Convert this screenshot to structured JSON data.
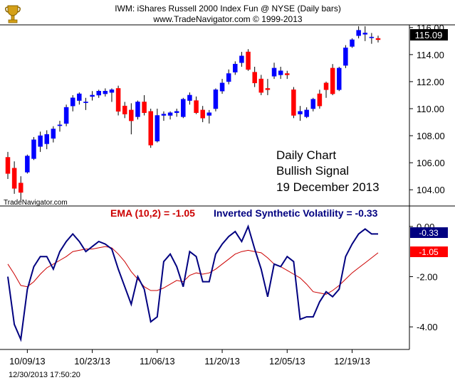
{
  "header": {
    "title": "IWM:  iShares Russell 2000 Index Fun @ NYSE  (Daily bars)",
    "copyright": "www.TradeNavigator.com © 1999-2013"
  },
  "watermark": "TradeNavigator.com",
  "timestamp": "12/30/2013 17:50:20",
  "colors": {
    "up_candle": "#0000ff",
    "down_candle": "#ff0000",
    "price_badge": "#000000",
    "isv_line": "#000080",
    "ema_line": "#cc0000",
    "background": "#ffffff",
    "axis": "#000000"
  },
  "icons": {
    "logo": "trophy-icon"
  },
  "chart_data": [
    {
      "type": "candlestick",
      "panel": "price",
      "x_labels": [
        "10/09/13",
        "10/23/13",
        "11/06/13",
        "11/20/13",
        "12/05/13",
        "12/19/13"
      ],
      "x_label_positions": [
        3,
        13,
        23,
        33,
        43,
        53
      ],
      "yticks": [
        104.0,
        106.0,
        108.0,
        110.0,
        112.0,
        114.0,
        116.0
      ],
      "ylim": [
        102.8,
        116.2
      ],
      "last_price": "115.09",
      "annotation": [
        "Daily Chart",
        "Bullish Signal",
        "19 December 2013"
      ],
      "candles": [
        {
          "o": 106.4,
          "h": 106.8,
          "l": 104.8,
          "c": 105.2
        },
        {
          "o": 105.6,
          "h": 106.1,
          "l": 103.7,
          "c": 104.1
        },
        {
          "o": 104.5,
          "h": 105.0,
          "l": 103.2,
          "c": 103.8
        },
        {
          "o": 105.3,
          "h": 106.6,
          "l": 105.2,
          "c": 106.5
        },
        {
          "o": 106.3,
          "h": 107.9,
          "l": 106.2,
          "c": 107.7
        },
        {
          "o": 107.2,
          "h": 108.3,
          "l": 106.8,
          "c": 108.0
        },
        {
          "o": 107.4,
          "h": 108.4,
          "l": 107.0,
          "c": 108.1
        },
        {
          "o": 107.8,
          "h": 108.7,
          "l": 107.5,
          "c": 108.5
        },
        {
          "o": 108.8,
          "h": 109.1,
          "l": 108.3,
          "c": 108.8
        },
        {
          "o": 108.9,
          "h": 110.3,
          "l": 108.7,
          "c": 110.1
        },
        {
          "o": 110.2,
          "h": 111.0,
          "l": 109.8,
          "c": 110.8
        },
        {
          "o": 110.6,
          "h": 111.2,
          "l": 110.3,
          "c": 111.1
        },
        {
          "o": 110.5,
          "h": 110.8,
          "l": 109.9,
          "c": 110.5
        },
        {
          "o": 110.9,
          "h": 111.3,
          "l": 110.6,
          "c": 111.0
        },
        {
          "o": 111.0,
          "h": 111.4,
          "l": 110.8,
          "c": 111.3
        },
        {
          "o": 111.1,
          "h": 111.5,
          "l": 110.9,
          "c": 111.3
        },
        {
          "o": 111.2,
          "h": 111.5,
          "l": 110.5,
          "c": 111.4
        },
        {
          "o": 111.5,
          "h": 111.7,
          "l": 109.5,
          "c": 109.8
        },
        {
          "o": 110.2,
          "h": 110.5,
          "l": 109.3,
          "c": 109.6
        },
        {
          "o": 109.9,
          "h": 110.4,
          "l": 108.1,
          "c": 109.1
        },
        {
          "o": 109.4,
          "h": 110.6,
          "l": 109.2,
          "c": 110.5
        },
        {
          "o": 110.5,
          "h": 111.0,
          "l": 109.5,
          "c": 109.7
        },
        {
          "o": 109.8,
          "h": 110.0,
          "l": 107.1,
          "c": 107.3
        },
        {
          "o": 107.6,
          "h": 110.0,
          "l": 107.5,
          "c": 109.5
        },
        {
          "o": 109.5,
          "h": 109.8,
          "l": 109.1,
          "c": 109.6
        },
        {
          "o": 109.5,
          "h": 109.8,
          "l": 109.2,
          "c": 109.7
        },
        {
          "o": 109.7,
          "h": 110.0,
          "l": 109.4,
          "c": 109.8
        },
        {
          "o": 109.4,
          "h": 110.8,
          "l": 109.3,
          "c": 110.7
        },
        {
          "o": 110.6,
          "h": 111.2,
          "l": 110.3,
          "c": 111.0
        },
        {
          "o": 110.6,
          "h": 110.9,
          "l": 109.6,
          "c": 109.7
        },
        {
          "o": 109.9,
          "h": 110.2,
          "l": 109.0,
          "c": 109.3
        },
        {
          "o": 109.5,
          "h": 109.9,
          "l": 108.9,
          "c": 109.7
        },
        {
          "o": 110.0,
          "h": 111.5,
          "l": 109.8,
          "c": 111.4
        },
        {
          "o": 111.3,
          "h": 112.2,
          "l": 111.1,
          "c": 111.9
        },
        {
          "o": 112.0,
          "h": 112.9,
          "l": 111.8,
          "c": 112.6
        },
        {
          "o": 112.7,
          "h": 113.5,
          "l": 112.5,
          "c": 113.3
        },
        {
          "o": 113.4,
          "h": 114.2,
          "l": 113.1,
          "c": 113.9
        },
        {
          "o": 114.2,
          "h": 114.4,
          "l": 112.8,
          "c": 112.9
        },
        {
          "o": 112.7,
          "h": 113.1,
          "l": 111.6,
          "c": 111.9
        },
        {
          "o": 112.2,
          "h": 112.5,
          "l": 111.0,
          "c": 111.2
        },
        {
          "o": 111.5,
          "h": 112.2,
          "l": 111.0,
          "c": 111.4
        },
        {
          "o": 112.4,
          "h": 113.4,
          "l": 112.2,
          "c": 113.0
        },
        {
          "o": 112.5,
          "h": 113.1,
          "l": 112.2,
          "c": 112.8
        },
        {
          "o": 112.6,
          "h": 112.8,
          "l": 112.2,
          "c": 112.5
        },
        {
          "o": 111.4,
          "h": 111.6,
          "l": 109.3,
          "c": 109.5
        },
        {
          "o": 109.6,
          "h": 110.2,
          "l": 109.1,
          "c": 109.8
        },
        {
          "o": 109.4,
          "h": 110.1,
          "l": 109.3,
          "c": 109.9
        },
        {
          "o": 110.0,
          "h": 110.8,
          "l": 109.8,
          "c": 110.7
        },
        {
          "o": 111.1,
          "h": 111.4,
          "l": 110.0,
          "c": 110.2
        },
        {
          "o": 111.9,
          "h": 112.0,
          "l": 110.8,
          "c": 111.4
        },
        {
          "o": 113.0,
          "h": 113.3,
          "l": 111.0,
          "c": 111.1
        },
        {
          "o": 111.4,
          "h": 113.1,
          "l": 111.3,
          "c": 113.0
        },
        {
          "o": 113.2,
          "h": 114.7,
          "l": 113.0,
          "c": 114.5
        },
        {
          "o": 114.6,
          "h": 115.2,
          "l": 114.5,
          "c": 115.1
        },
        {
          "o": 115.4,
          "h": 116.1,
          "l": 115.2,
          "c": 115.8
        },
        {
          "o": 115.5,
          "h": 116.1,
          "l": 115.0,
          "c": 115.6
        },
        {
          "o": 115.3,
          "h": 115.6,
          "l": 114.8,
          "c": 115.3
        },
        {
          "o": 115.2,
          "h": 115.4,
          "l": 114.9,
          "c": 115.1
        }
      ]
    },
    {
      "type": "line",
      "panel": "indicator",
      "ylim": [
        -4.9,
        0.25
      ],
      "yticks": [
        0.0,
        -2.0,
        -4.0
      ],
      "ytick_labels": [
        "0.00",
        "-2.00",
        "-4.00"
      ],
      "series": [
        {
          "name": "Inverted Synthetic Volatility",
          "label": "Inverted Synthetic Volatility = -0.33",
          "last": "-0.33",
          "color": "#000080",
          "values": [
            -2.0,
            -3.9,
            -4.5,
            -2.5,
            -1.6,
            -1.2,
            -1.2,
            -1.7,
            -1.0,
            -0.6,
            -0.3,
            -0.6,
            -1.0,
            -0.8,
            -0.6,
            -0.7,
            -0.9,
            -1.7,
            -2.4,
            -3.1,
            -2.0,
            -2.5,
            -3.8,
            -3.6,
            -1.4,
            -1.1,
            -1.6,
            -2.4,
            -1.0,
            -1.2,
            -2.2,
            -2.2,
            -1.1,
            -0.7,
            -0.4,
            -0.2,
            -0.6,
            0.0,
            -0.9,
            -1.7,
            -2.8,
            -1.5,
            -1.6,
            -1.2,
            -1.4,
            -3.7,
            -3.6,
            -3.6,
            -3.0,
            -2.6,
            -2.8,
            -2.5,
            -1.2,
            -0.7,
            -0.3,
            -0.1,
            -0.3,
            -0.3
          ]
        },
        {
          "name": "EMA (10,2)",
          "label": "EMA (10,2) = -1.05",
          "last": "-1.05",
          "color": "#cc0000",
          "values": [
            -1.5,
            -1.9,
            -2.35,
            -2.4,
            -2.2,
            -1.9,
            -1.65,
            -1.5,
            -1.35,
            -1.2,
            -1.0,
            -0.95,
            -0.9,
            -0.9,
            -0.85,
            -0.8,
            -0.85,
            -1.1,
            -1.4,
            -1.8,
            -2.1,
            -2.4,
            -2.55,
            -2.55,
            -2.45,
            -2.3,
            -2.15,
            -2.2,
            -1.95,
            -1.85,
            -1.9,
            -1.85,
            -1.7,
            -1.5,
            -1.3,
            -1.1,
            -1.0,
            -0.95,
            -1.0,
            -1.05,
            -1.25,
            -1.5,
            -1.6,
            -1.75,
            -1.9,
            -2.05,
            -2.3,
            -2.6,
            -2.65,
            -2.7,
            -2.55,
            -2.35,
            -2.1,
            -1.85,
            -1.65,
            -1.45,
            -1.25,
            -1.05
          ]
        }
      ]
    }
  ]
}
